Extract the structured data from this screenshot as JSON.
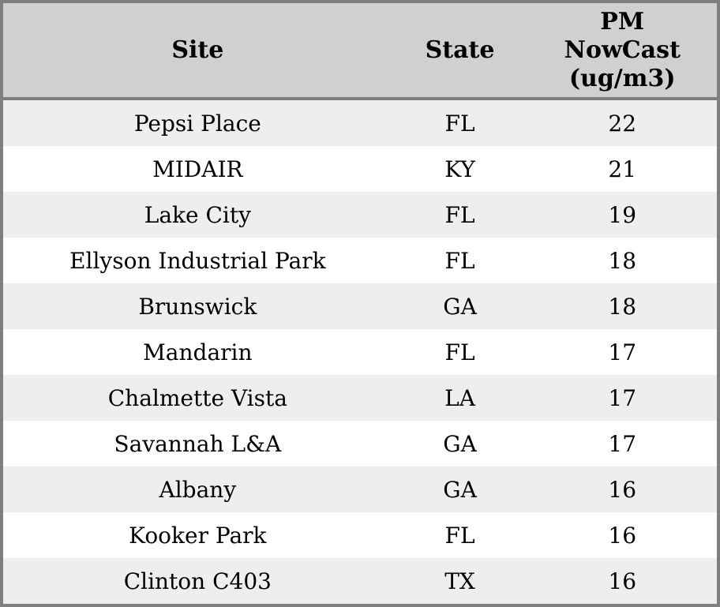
{
  "table": {
    "columns": [
      {
        "key": "site",
        "label": "Site"
      },
      {
        "key": "state",
        "label": "State"
      },
      {
        "key": "pm",
        "label": "PM\nNowCast\n(ug/m3)"
      }
    ],
    "rows": [
      {
        "site": "Pepsi Place",
        "state": "FL",
        "pm": "22"
      },
      {
        "site": "MIDAIR",
        "state": "KY",
        "pm": "21"
      },
      {
        "site": "Lake City",
        "state": "FL",
        "pm": "19"
      },
      {
        "site": "Ellyson Industrial Park",
        "state": "FL",
        "pm": "18"
      },
      {
        "site": "Brunswick",
        "state": "GA",
        "pm": "18"
      },
      {
        "site": "Mandarin",
        "state": "FL",
        "pm": "17"
      },
      {
        "site": "Chalmette Vista",
        "state": "LA",
        "pm": "17"
      },
      {
        "site": "Savannah L&A",
        "state": "GA",
        "pm": "17"
      },
      {
        "site": "Albany",
        "state": "GA",
        "pm": "16"
      },
      {
        "site": "Kooker Park",
        "state": "FL",
        "pm": "16"
      },
      {
        "site": "Clinton C403",
        "state": "TX",
        "pm": "16"
      }
    ]
  },
  "colors": {
    "header_bg": "#d0d0d0",
    "row_bg": "#ffffff",
    "row_alt_bg": "#eeeeee",
    "border": "#7f7f7f",
    "text": "#000000"
  },
  "chart_data": {
    "type": "table",
    "title": "",
    "columns": [
      "Site",
      "State",
      "PM NowCast (ug/m3)"
    ],
    "rows": [
      [
        "Pepsi Place",
        "FL",
        22
      ],
      [
        "MIDAIR",
        "KY",
        21
      ],
      [
        "Lake City",
        "FL",
        19
      ],
      [
        "Ellyson Industrial Park",
        "FL",
        18
      ],
      [
        "Brunswick",
        "GA",
        18
      ],
      [
        "Mandarin",
        "FL",
        17
      ],
      [
        "Chalmette Vista",
        "LA",
        17
      ],
      [
        "Savannah L&A",
        "GA",
        17
      ],
      [
        "Albany",
        "GA",
        16
      ],
      [
        "Kooker Park",
        "FL",
        16
      ],
      [
        "Clinton C403",
        "TX",
        16
      ]
    ],
    "layout": {
      "header_background": "#d0d0d0",
      "stripe_background": "#eeeeee",
      "sort": "PM NowCast descending"
    }
  }
}
